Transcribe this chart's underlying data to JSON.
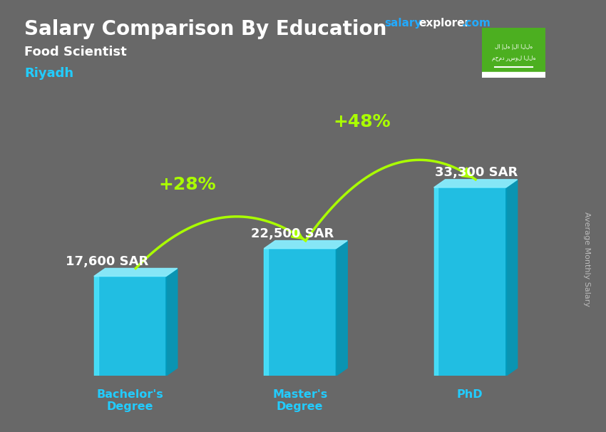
{
  "title": "Salary Comparison By Education",
  "subtitle_job": "Food Scientist",
  "subtitle_city": "Riyadh",
  "ylabel": "Average Monthly Salary",
  "categories": [
    "Bachelor's\nDegree",
    "Master's\nDegree",
    "PhD"
  ],
  "values": [
    17600,
    22500,
    33300
  ],
  "value_labels": [
    "17,600 SAR",
    "22,500 SAR",
    "33,300 SAR"
  ],
  "pct_labels": [
    "+28%",
    "+48%"
  ],
  "bg_color": "#686868",
  "title_color": "#ffffff",
  "subtitle_job_color": "#ffffff",
  "subtitle_city_color": "#22ccff",
  "value_color": "#ffffff",
  "pct_color": "#aaff00",
  "arrow_color": "#aaff00",
  "tick_color": "#22ccff",
  "bar_front": "#1ac8f0",
  "bar_top": "#88eeff",
  "bar_side": "#0099bb",
  "brand_color_salary": "#22aaff",
  "brand_color_explorer": "#ffffff",
  "brand_color_dotcom": "#22aaff",
  "flag_bg": "#4caf20",
  "ylim": [
    0,
    42000
  ]
}
